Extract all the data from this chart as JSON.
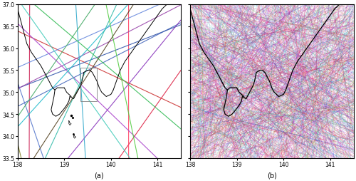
{
  "xlim": [
    138,
    141.5
  ],
  "ylim": [
    33.5,
    37.0
  ],
  "xticks": [
    138,
    139,
    140,
    141
  ],
  "yticks": [
    33.5,
    34,
    34.5,
    35,
    35.5,
    36,
    36.5,
    37
  ],
  "label_a": "(a)",
  "label_b": "(b)",
  "n_single": 20,
  "n_ensemble": 1000,
  "seed_single": 7,
  "seed_ensemble": 42,
  "fig_width": 5.0,
  "fig_height": 2.55,
  "dpi": 100,
  "background": "#ffffff",
  "coast_color": "#000000",
  "coast_linewidth": 0.7,
  "track_alpha_single": 0.9,
  "track_alpha_ensemble": 0.25,
  "track_lw_single": 0.8,
  "track_lw_ensemble": 0.4,
  "tick_labelsize": 5.5,
  "label_fontsize": 7
}
